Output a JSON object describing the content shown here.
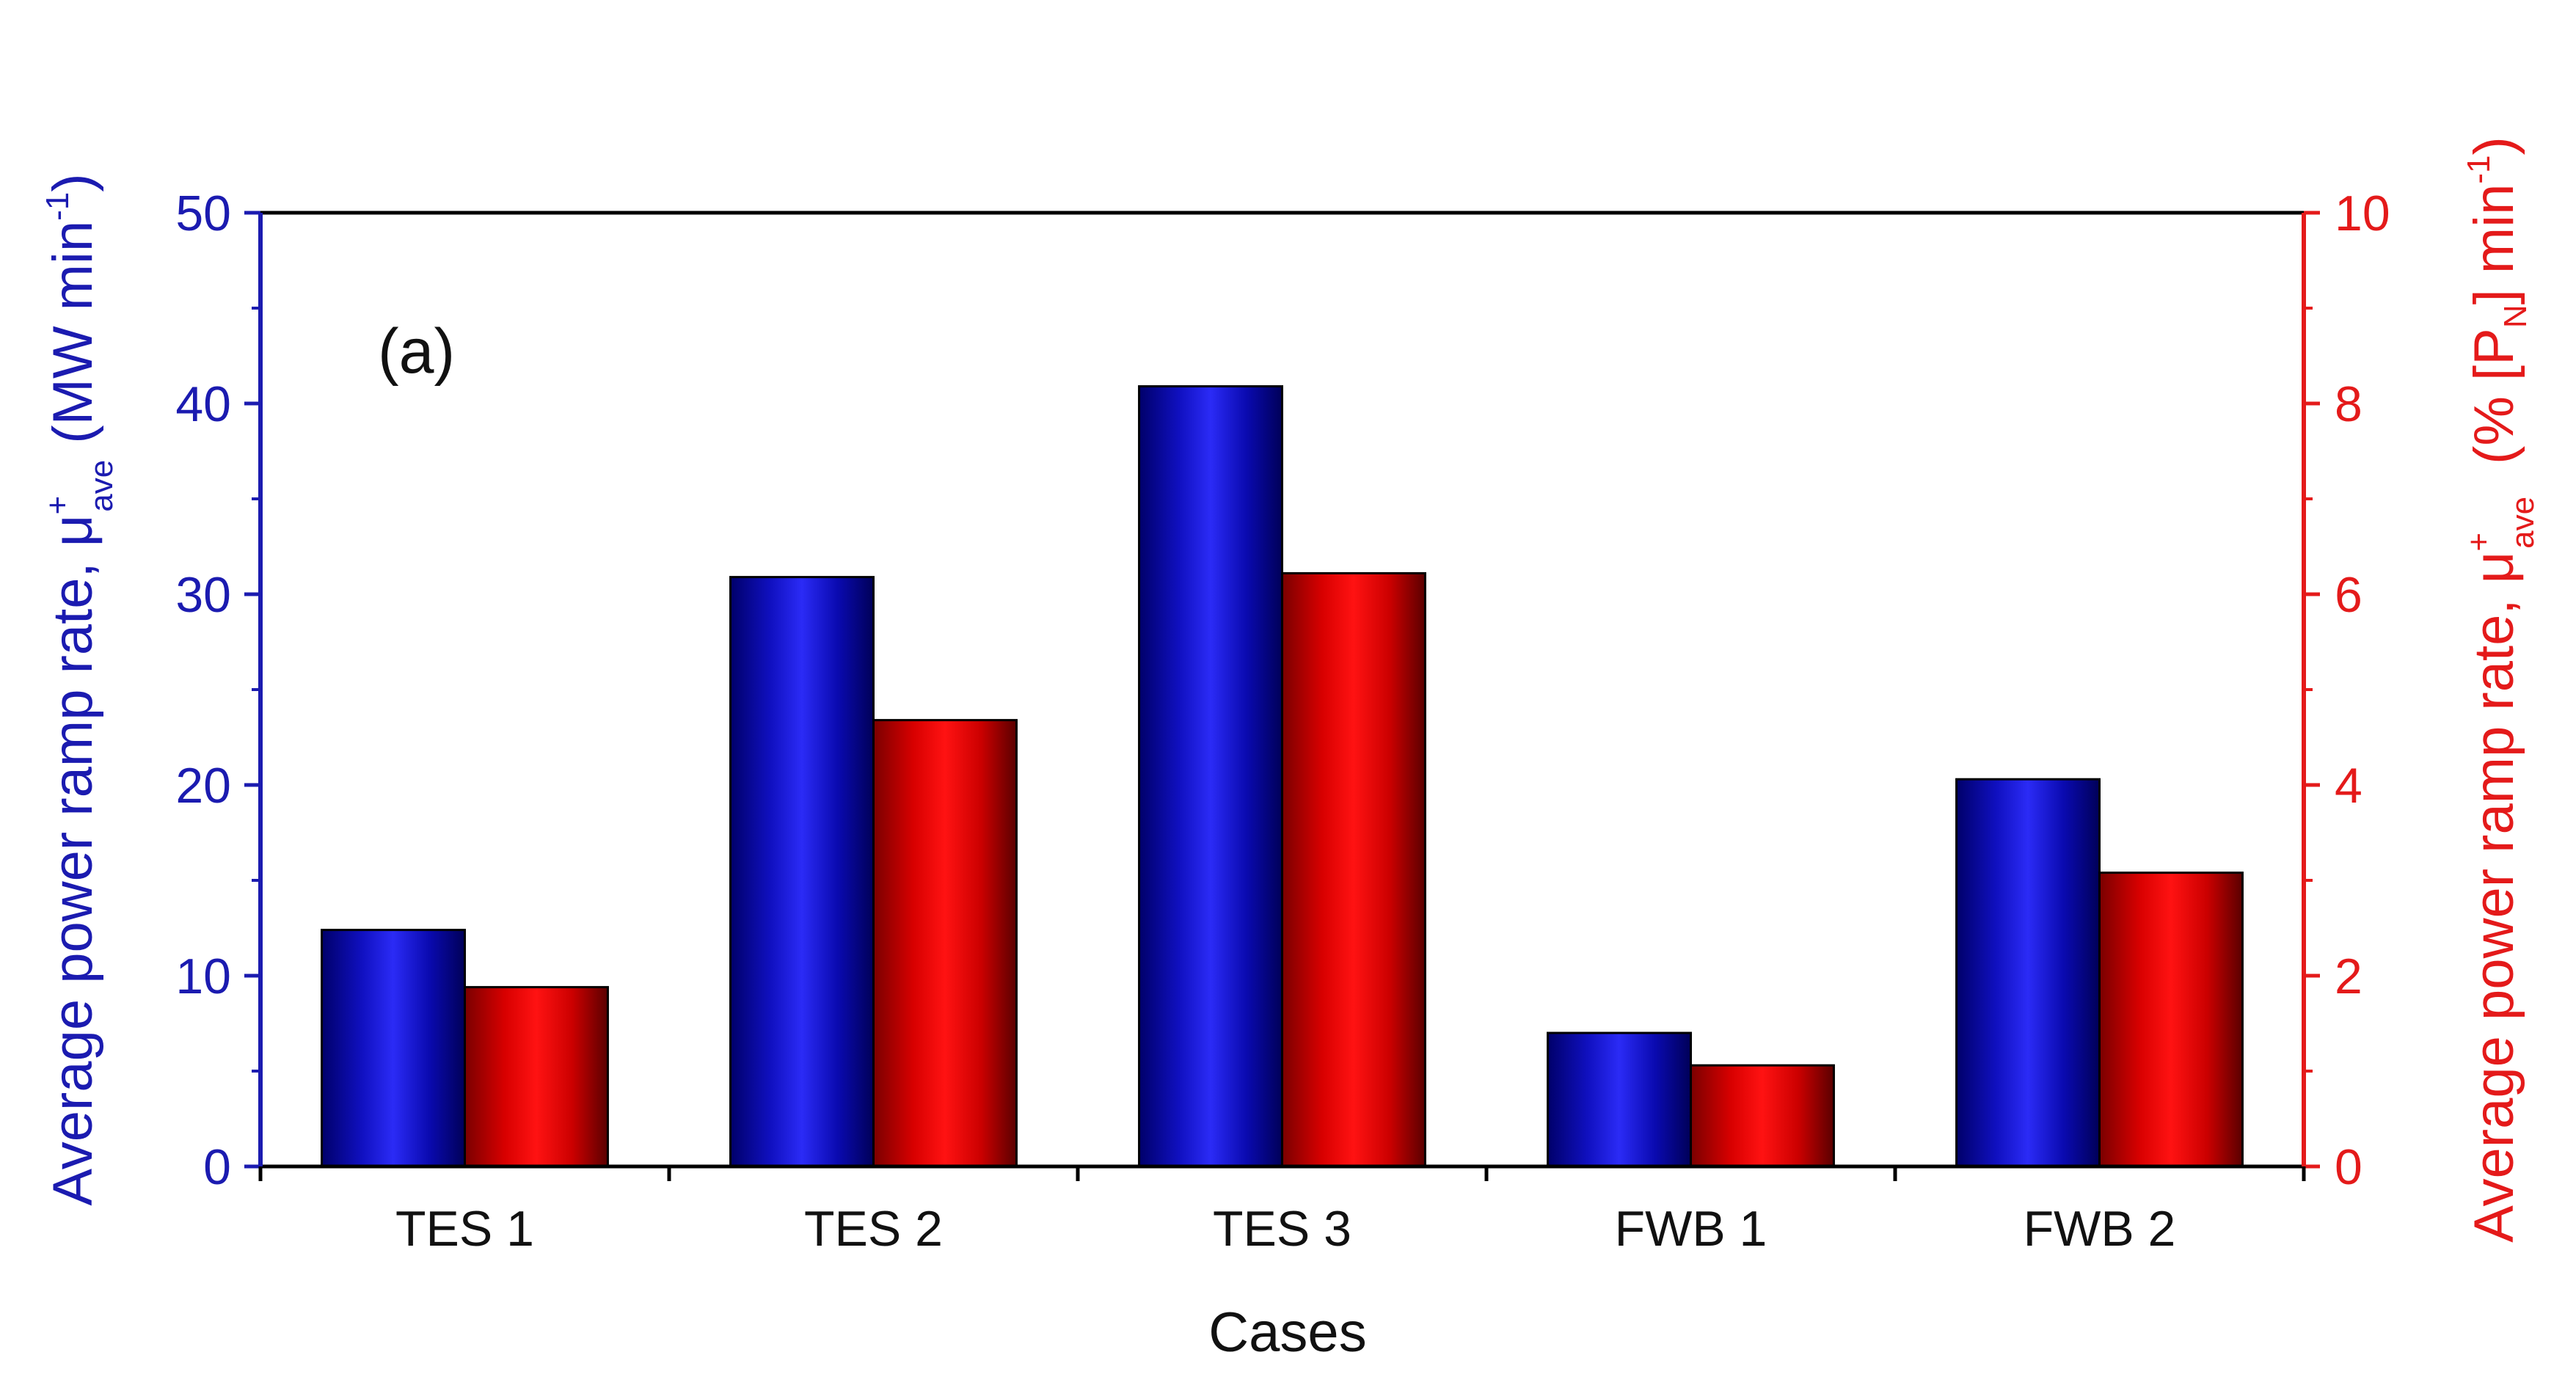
{
  "chart_data": {
    "type": "bar",
    "panel_label": "(a)",
    "categories": [
      "TES 1",
      "TES 2",
      "TES 3",
      "FWB 1",
      "FWB 2"
    ],
    "xlabel": "Cases",
    "series": [
      {
        "name": "Average power ramp rate (MW min-1)",
        "axis": "left",
        "color": "#0000c8",
        "values": [
          12.4,
          30.9,
          40.9,
          7.0,
          20.3
        ]
      },
      {
        "name": "Average power ramp rate (% [PN] min-1)",
        "axis": "right",
        "color": "#ff0000",
        "values": [
          1.88,
          4.68,
          6.22,
          1.06,
          3.08
        ]
      }
    ],
    "y_left": {
      "label_main": "Average power ramp rate, μ",
      "label_sup": "+",
      "label_sub": "ave",
      "label_unit": "(MW min",
      "label_unit_sup": "-1",
      "label_close": ")",
      "ylim": [
        0,
        50
      ],
      "ticks": [
        "0",
        "10",
        "20",
        "30",
        "40",
        "50"
      ],
      "color": "#1b1bb0"
    },
    "y_right": {
      "label_main": "Average power ramp rate, μ",
      "label_sup": "+",
      "label_sub": "ave",
      "label_unit": "(% [P",
      "label_unit_sub": "N",
      "label_unit_mid": "] min",
      "label_unit_sup": "-1",
      "label_close": ")",
      "ylim": [
        0,
        10
      ],
      "ticks": [
        "0",
        "2",
        "4",
        "6",
        "8",
        "10"
      ],
      "color": "#e41a1a"
    },
    "legend": "none",
    "grid": false
  }
}
